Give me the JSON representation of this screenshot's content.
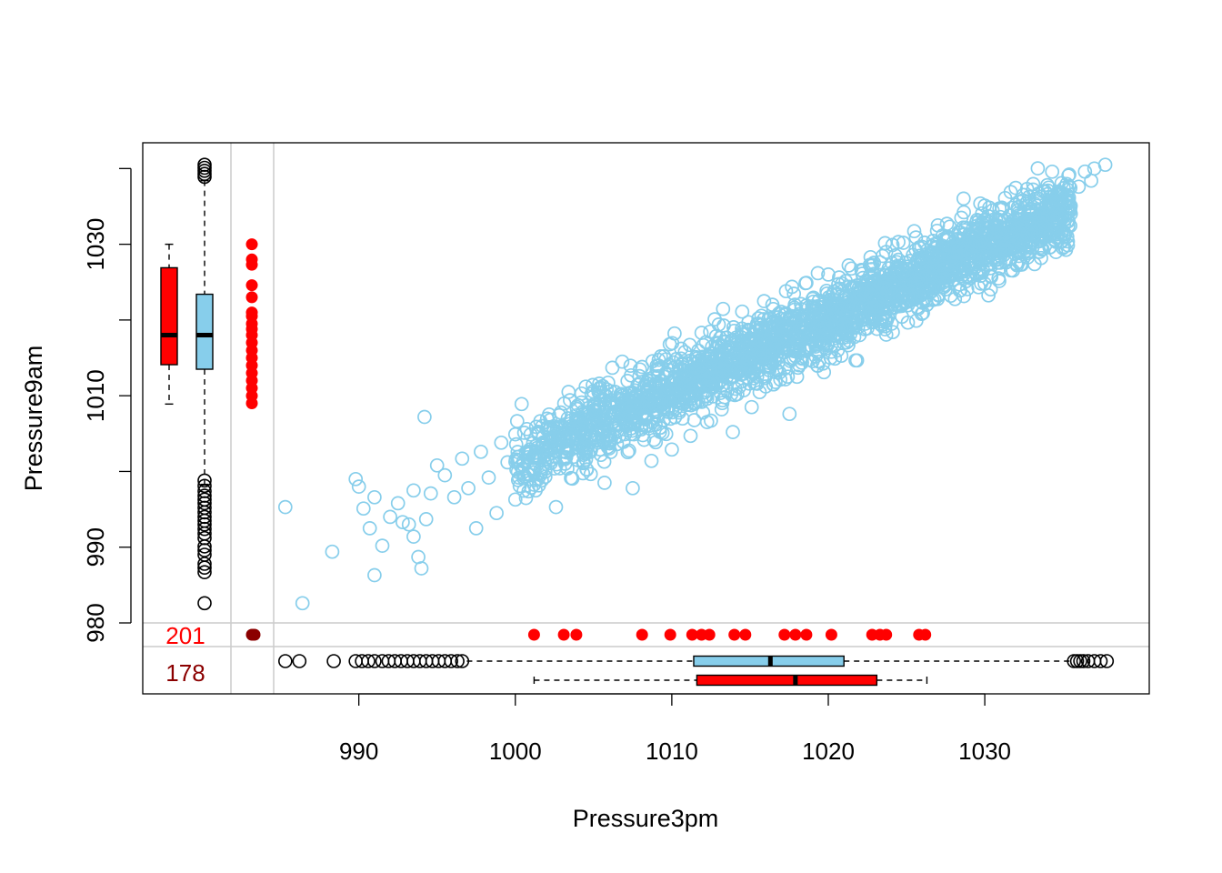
{
  "chart_data": {
    "type": "scatter",
    "title": "",
    "xlabel": "Pressure3pm",
    "ylabel": "Pressure9am",
    "x_ticks": [
      990,
      1000,
      1010,
      1020,
      1030
    ],
    "y_ticks": [
      990,
      1010,
      1030
    ],
    "y_ticks_minor": [
      980,
      1000,
      1020
    ],
    "missing_label": "980",
    "xlim": [
      984.5,
      1039.0
    ],
    "ylim": [
      980.0,
      1041.0
    ],
    "colors": {
      "points": "#87CEEB",
      "box_present": "#87CEEB",
      "box_missing": "#FF0000",
      "missing_points": "#FF0000",
      "both_missing": "#8B0000",
      "count_x_missing": "#FF0000",
      "count_both_missing": "#8B0000",
      "outliers": "#000000"
    },
    "missing_counts": {
      "x_missing": "201",
      "both_missing": "178"
    },
    "trend": {
      "slope": 0.93,
      "intercept": 71.5,
      "spread": 2.3
    },
    "series": [
      {
        "name": "",
        "values": [
          [
            985.3,
            995.3
          ],
          [
            986.4,
            982.6
          ],
          [
            988.3,
            989.4
          ],
          [
            989.8,
            999.0
          ],
          [
            990.0,
            998.0
          ],
          [
            990.3,
            995.1
          ],
          [
            990.7,
            992.5
          ],
          [
            991.0,
            996.6
          ],
          [
            991.0,
            986.3
          ],
          [
            991.5,
            990.2
          ],
          [
            992.0,
            994.0
          ],
          [
            992.5,
            995.8
          ],
          [
            992.8,
            993.3
          ],
          [
            993.2,
            993.0
          ],
          [
            993.5,
            991.4
          ],
          [
            993.8,
            988.7
          ],
          [
            994.0,
            987.2
          ],
          [
            993.5,
            997.5
          ],
          [
            994.3,
            993.7
          ],
          [
            994.6,
            997.1
          ],
          [
            994.2,
            1007.2
          ],
          [
            995.0,
            1000.8
          ],
          [
            995.5,
            999.5
          ],
          [
            996.1,
            996.6
          ],
          [
            996.6,
            1001.7
          ],
          [
            997.0,
            997.8
          ],
          [
            997.5,
            992.5
          ],
          [
            997.8,
            1002.6
          ],
          [
            998.3,
            999.2
          ],
          [
            998.8,
            994.5
          ],
          [
            999.1,
            1003.8
          ],
          [
            999.5,
            1001.2
          ],
          [
            1000.0,
            1004.9
          ],
          [
            1000.4,
            1008.9
          ],
          [
            1000.9,
            1002.3
          ],
          [
            1001.3,
            997.5
          ],
          [
            1002.2,
            1005.6
          ],
          [
            1002.6,
            995.3
          ],
          [
            1003.4,
            1010.5
          ],
          [
            1004.0,
            1001.5
          ],
          [
            1004.5,
            1011.2
          ],
          [
            1005.0,
            1008.1
          ],
          [
            1005.7,
            998.5
          ],
          [
            1006.2,
            1013.7
          ],
          [
            1006.8,
            1010.2
          ],
          [
            1007.5,
            997.8
          ],
          [
            1008.1,
            1013.8
          ],
          [
            1008.7,
            1001.4
          ],
          [
            1009.3,
            1015.2
          ],
          [
            1010.0,
            1002.9
          ],
          [
            1010.6,
            1016.2
          ],
          [
            1011.2,
            1004.7
          ],
          [
            1011.9,
            1018.3
          ],
          [
            1012.5,
            1006.7
          ],
          [
            1013.0,
            1019.4
          ],
          [
            1013.9,
            1005.2
          ],
          [
            1014.5,
            1021.1
          ],
          [
            1015.1,
            1008.5
          ],
          [
            1015.9,
            1022.5
          ],
          [
            1016.5,
            1011.5
          ],
          [
            1017.3,
            1023.8
          ],
          [
            1018.0,
            1012.5
          ],
          [
            1018.6,
            1024.9
          ],
          [
            1019.3,
            1014.0
          ],
          [
            1020.0,
            1026.0
          ],
          [
            1020.6,
            1016.0
          ],
          [
            1021.3,
            1027.2
          ],
          [
            1022.0,
            1018.0
          ],
          [
            1022.7,
            1028.3
          ],
          [
            1023.4,
            1019.3
          ],
          [
            1024.1,
            1029.9
          ],
          [
            1024.8,
            1022.5
          ],
          [
            1025.6,
            1030.9
          ],
          [
            1026.3,
            1022.0
          ],
          [
            1027.0,
            1032.5
          ],
          [
            1027.8,
            1025.7
          ],
          [
            1028.5,
            1033.5
          ],
          [
            1029.2,
            1026.9
          ],
          [
            1030.0,
            1035.1
          ],
          [
            1030.7,
            1028.0
          ],
          [
            1031.3,
            1036.1
          ],
          [
            1032.0,
            1031.5
          ],
          [
            1032.7,
            1037.3
          ],
          [
            1033.5,
            1029.0
          ],
          [
            1034.0,
            1037.8
          ],
          [
            1034.6,
            1034.2
          ],
          [
            1035.4,
            1039.2
          ],
          [
            1036.0,
            1037.6
          ],
          [
            1036.4,
            1039.6
          ],
          [
            1037.0,
            1040.0
          ],
          [
            1037.7,
            1040.5
          ],
          [
            1036.8,
            1038.4
          ]
        ]
      }
    ],
    "y_boxplots": [
      {
        "name": "present",
        "q1": 1013.5,
        "median": 1018.0,
        "q3": 1023.4,
        "whisker_low": 998.3,
        "whisker_high": 1038.4,
        "outliers": [
          1038.9,
          1039.3,
          1039.7,
          1040.1,
          1040.5,
          998.8,
          998.1,
          997.4,
          996.8,
          996.3,
          995.8,
          995.2,
          994.6,
          994.0,
          993.5,
          993.0,
          992.4,
          991.8,
          991.2,
          990.1,
          989.6,
          989.0,
          987.8,
          987.3,
          986.7,
          982.6
        ]
      },
      {
        "name": "missing",
        "q1": 1014.1,
        "median": 1018.0,
        "q3": 1026.9,
        "whisker_low": 1008.9,
        "whisker_high": 1030.0
      }
    ],
    "x_boxplots": [
      {
        "name": "present",
        "q1": 1011.4,
        "median": 1016.3,
        "q3": 1021.0,
        "whisker_low": 996.9,
        "whisker_high": 1035.6,
        "outliers": [
          985.3,
          986.2,
          988.4,
          989.8,
          990.2,
          990.6,
          991.0,
          991.5,
          991.9,
          992.3,
          992.7,
          993.1,
          993.5,
          993.9,
          994.3,
          994.7,
          995.1,
          995.5,
          995.9,
          996.3,
          996.6,
          1035.7,
          1035.9,
          1036.1,
          1036.3,
          1036.6,
          1037.0,
          1037.4,
          1037.8
        ]
      },
      {
        "name": "missing",
        "q1": 1011.6,
        "median": 1017.9,
        "q3": 1023.1,
        "whisker_low": 1001.2,
        "whisker_high": 1026.3
      }
    ],
    "x_missing_points": [
      1030.0,
      1028.0,
      1027.3,
      1024.6,
      1023.0,
      1021.0,
      1020.5,
      1019.5,
      1018.8,
      1018.0,
      1017.0,
      1016.0,
      1015.0,
      1014.0,
      1013.0,
      1012.0,
      1011.0,
      1010.0,
      1009.0
    ],
    "y_missing_points": [
      1001.2,
      1003.1,
      1003.9,
      1008.1,
      1009.9,
      1011.3,
      1011.9,
      1012.4,
      1014.0,
      1014.7,
      1017.2,
      1017.9,
      1018.6,
      1020.2,
      1022.8,
      1023.3,
      1023.7,
      1025.8,
      1026.2
    ]
  }
}
